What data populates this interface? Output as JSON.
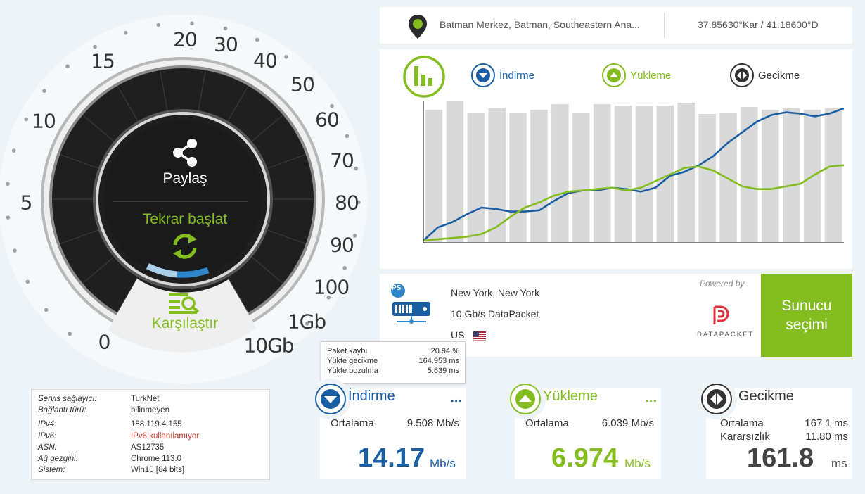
{
  "gauge": {
    "labels": [
      "0",
      "5",
      "10",
      "15",
      "20",
      "30",
      "40",
      "50",
      "60",
      "70",
      "80",
      "90",
      "100",
      "1Gb",
      "10Gb"
    ],
    "share_label": "Paylaş",
    "restart_label": "Tekrar başlat",
    "compare_label": "Karşılaştır",
    "accent": "#84bd1f",
    "dark": "#222222"
  },
  "location": {
    "place": "Batman Merkez, Batman, Southeastern Ana...",
    "coords": "37.85630°Kar / 41.18600°D"
  },
  "legend": {
    "download": "İndirme",
    "upload": "Yükleme",
    "latency": "Gecikme"
  },
  "server": {
    "city": "New York, New York",
    "provider": "10 Gb/s DataPacket",
    "country": "US",
    "powered_by": "Powered by",
    "sponsor": "DATAPACKET",
    "select_label": "Sunucu seçimi",
    "icon_badge": "PS"
  },
  "tooltip": {
    "rows": [
      {
        "label": "Paket kaybı",
        "value": "20.94 %"
      },
      {
        "label": "Yükte gecikme",
        "value": "164.953 ms"
      },
      {
        "label": "Yükte bozulma",
        "value": "5.639 ms"
      }
    ]
  },
  "info": {
    "rows": [
      {
        "label": "Servis sağlayıcı:",
        "value": "TurkNet"
      },
      {
        "label": "Bağlantı türü:",
        "value": "bilinmeyen"
      },
      {
        "label": "IPv4:",
        "value": "188.119.4.155"
      },
      {
        "label": "IPv6:",
        "value": "IPv6 kullanılamıyor"
      },
      {
        "label": "ASN:",
        "value": "AS12735"
      },
      {
        "label": "Ağ gezgini:",
        "value": "Chrome 113.0"
      },
      {
        "label": "Sistem:",
        "value": "Win10 [64 bits]"
      }
    ]
  },
  "results": {
    "download": {
      "title": "İndirme",
      "avg_label": "Ortalama",
      "avg_value": "9.508 Mb/s",
      "value": "14.17",
      "unit": "Mb/s",
      "dots": "...",
      "color": "#1a5fa3"
    },
    "upload": {
      "title": "Yükleme",
      "avg_label": "Ortalama",
      "avg_value": "6.039 Mb/s",
      "value": "6.974",
      "unit": "Mb/s",
      "dots": "...",
      "color": "#84bd1f"
    },
    "latency": {
      "title": "Gecikme",
      "avg_label": "Ortalama",
      "avg_value": "167.1 ms",
      "jitter_label": "Kararsızlık",
      "jitter_value": "11.80 ms",
      "value": "161.8",
      "unit": "ms",
      "color": "#333333"
    }
  },
  "chart_data": {
    "type": "line",
    "bars": [
      0.94,
      1.0,
      0.92,
      0.95,
      0.92,
      0.94,
      0.98,
      0.92,
      0.98,
      0.97,
      0.97,
      0.97,
      0.99,
      0.91,
      0.92,
      0.96,
      0.94,
      0.95,
      0.94,
      0.95
    ],
    "series": [
      {
        "name": "İndirme",
        "color": "#1a5fa3",
        "values": [
          0.0,
          0.1,
          0.14,
          0.2,
          0.25,
          0.24,
          0.22,
          0.22,
          0.23,
          0.3,
          0.36,
          0.38,
          0.38,
          0.4,
          0.39,
          0.37,
          0.4,
          0.49,
          0.52,
          0.57,
          0.64,
          0.74,
          0.82,
          0.9,
          0.95,
          0.97,
          0.96,
          0.94,
          0.96,
          1.0
        ]
      },
      {
        "name": "Yükleme",
        "color": "#84bd1f",
        "values": [
          0.0,
          0.01,
          0.02,
          0.03,
          0.05,
          0.1,
          0.18,
          0.25,
          0.29,
          0.34,
          0.37,
          0.38,
          0.39,
          0.4,
          0.38,
          0.4,
          0.45,
          0.5,
          0.55,
          0.56,
          0.53,
          0.47,
          0.41,
          0.39,
          0.39,
          0.41,
          0.43,
          0.5,
          0.56,
          0.57
        ]
      }
    ]
  }
}
